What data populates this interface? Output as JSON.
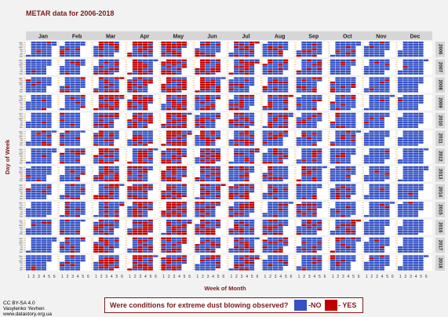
{
  "chart_data": {
    "type": "heatmap",
    "title": "METAR data for 2006-2018",
    "xlabel": "Week of Month",
    "ylabel": "Day of Week",
    "months": [
      "Jan",
      "Feb",
      "Mar",
      "Apr",
      "May",
      "Jun",
      "Jul",
      "Aug",
      "Sep",
      "Oct",
      "Nov",
      "Dec"
    ],
    "years": [
      "2006",
      "2007",
      "2008",
      "2009",
      "2010",
      "2011",
      "2012",
      "2013",
      "2014",
      "2015",
      "2016",
      "2017",
      "2018"
    ],
    "week_ticks": [
      "1",
      "2",
      "3",
      "4",
      "5",
      "6"
    ],
    "day_ticks": [
      "Mon",
      "Tue",
      "Wed",
      "Thu",
      "Fri",
      "Sat",
      "Sun"
    ],
    "monthly_yes_share": {
      "Jan": 0.06,
      "Feb": 0.14,
      "Mar": 0.38,
      "Apr": 0.45,
      "May": 0.55,
      "Jun": 0.4,
      "Jul": 0.33,
      "Aug": 0.25,
      "Sep": 0.18,
      "Oct": 0.14,
      "Nov": 0.06,
      "Dec": 0.03
    },
    "legend": {
      "question": "Were conditions for extreme dust blowing observed?",
      "no_label": "-NO",
      "yes_label": "- YES",
      "no_color": "#3552c4",
      "yes_color": "#c00000"
    }
  },
  "credits": [
    "CC BY-SA 4.0",
    "Vasylenko Yevhen",
    "www.datastory.org.ua"
  ]
}
